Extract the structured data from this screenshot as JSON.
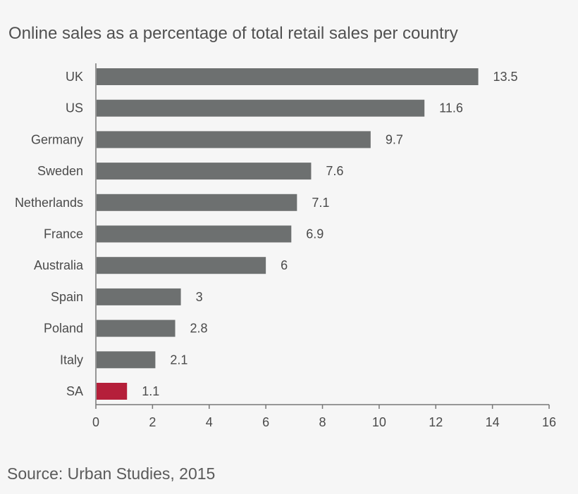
{
  "chart_data": {
    "type": "bar",
    "orientation": "horizontal",
    "title": "Online sales as a percentage of total retail sales per country",
    "categories": [
      "UK",
      "US",
      "Germany",
      "Sweden",
      "Netherlands",
      "France",
      "Australia",
      "Spain",
      "Poland",
      "Italy",
      "SA"
    ],
    "values": [
      13.5,
      11.6,
      9.7,
      7.6,
      7.1,
      6.9,
      6,
      3,
      2.8,
      2.1,
      1.1
    ],
    "value_labels": [
      "13.5",
      "11.6",
      "9.7",
      "7.6",
      "7.1",
      "6.9",
      "6",
      "3",
      "2.8",
      "2.1",
      "1.1"
    ],
    "xlim": [
      0,
      16
    ],
    "xticks": [
      0,
      2,
      4,
      6,
      8,
      10,
      12,
      14,
      16
    ],
    "grid": false,
    "legend": "none",
    "colors": {
      "default_bar": "#6d7070",
      "highlight_bar": "#b51f3a",
      "highlight_category": "SA"
    }
  },
  "source": "Source: Urban Studies, 2015"
}
